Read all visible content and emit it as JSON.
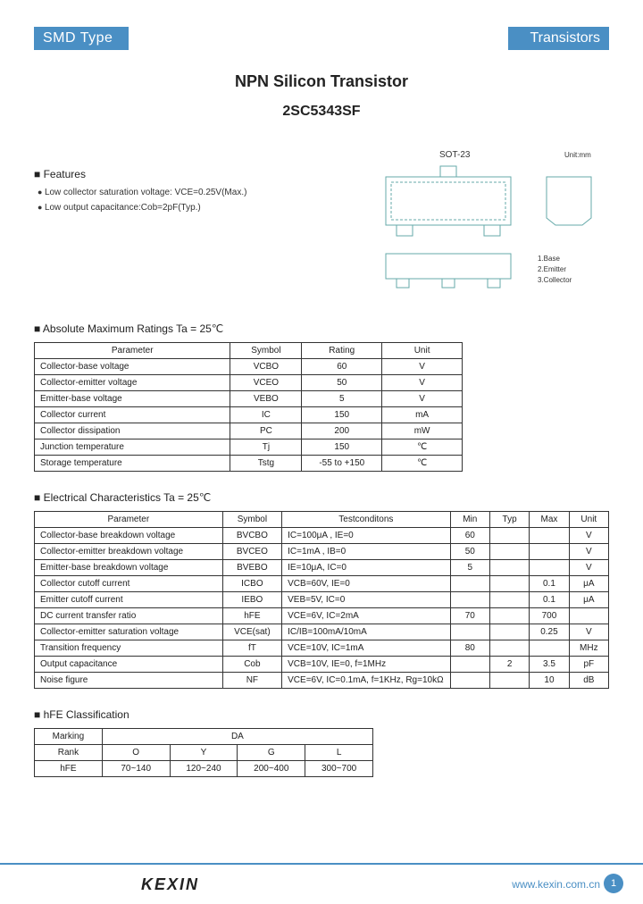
{
  "header": {
    "left": "SMD Type",
    "right": "Transistors"
  },
  "title": {
    "main": "NPN Silicon Transistor",
    "part": "2SC5343SF"
  },
  "features": {
    "heading": "Features",
    "items": [
      "Low collector saturation voltage: VCE=0.25V(Max.)",
      "Low output capacitance:Cob=2pF(Typ.)"
    ]
  },
  "package": {
    "label": "SOT-23",
    "unit": "Unit:mm",
    "pins": [
      "1.Base",
      "2.Emitter",
      "3.Collector"
    ]
  },
  "abs": {
    "heading": "Absolute Maximum Ratings Ta = 25℃",
    "cols": [
      "Parameter",
      "Symbol",
      "Rating",
      "Unit"
    ],
    "rows": [
      [
        "Collector-base voltage",
        "VCBO",
        "60",
        "V"
      ],
      [
        "Collector-emitter voltage",
        "VCEO",
        "50",
        "V"
      ],
      [
        "Emitter-base voltage",
        "VEBO",
        "5",
        "V"
      ],
      [
        "Collector current",
        "IC",
        "150",
        "mA"
      ],
      [
        "Collector dissipation",
        "PC",
        "200",
        "mW"
      ],
      [
        "Junction temperature",
        "Tj",
        "150",
        "℃"
      ],
      [
        "Storage temperature",
        "Tstg",
        "-55 to +150",
        "℃"
      ]
    ]
  },
  "elec": {
    "heading": "Electrical Characteristics Ta = 25℃",
    "cols": [
      "Parameter",
      "Symbol",
      "Testconditons",
      "Min",
      "Typ",
      "Max",
      "Unit"
    ],
    "rows": [
      [
        "Collector-base breakdown voltage",
        "BVCBO",
        "IC=100μA , IE=0",
        "60",
        "",
        "",
        "V"
      ],
      [
        "Collector-emitter breakdown voltage",
        "BVCEO",
        "IC=1mA , IB=0",
        "50",
        "",
        "",
        "V"
      ],
      [
        "Emitter-base breakdown voltage",
        "BVEBO",
        "IE=10μA, IC=0",
        "5",
        "",
        "",
        "V"
      ],
      [
        "Collector cutoff current",
        "ICBO",
        "VCB=60V, IE=0",
        "",
        "",
        "0.1",
        "μA"
      ],
      [
        "Emitter cutoff current",
        "IEBO",
        "VEB=5V, IC=0",
        "",
        "",
        "0.1",
        "μA"
      ],
      [
        "DC current transfer ratio",
        "hFE",
        "VCE=6V, IC=2mA",
        "70",
        "",
        "700",
        ""
      ],
      [
        "Collector-emitter saturation voltage",
        "VCE(sat)",
        "IC/IB=100mA/10mA",
        "",
        "",
        "0.25",
        "V"
      ],
      [
        "Transition frequency",
        "fT",
        "VCE=10V, IC=1mA",
        "80",
        "",
        "",
        "MHz"
      ],
      [
        "Output capacitance",
        "Cob",
        "VCB=10V, IE=0, f=1MHz",
        "",
        "2",
        "3.5",
        "pF"
      ],
      [
        "Noise figure",
        "NF",
        "VCE=6V, IC=0.1mA, f=1KHz, Rg=10kΩ",
        "",
        "",
        "10",
        "dB"
      ]
    ]
  },
  "hfe": {
    "heading": "hFE Classification",
    "marking_label": "Marking",
    "marking_value": "DA",
    "rank_label": "Rank",
    "ranks": [
      "O",
      "Y",
      "G",
      "L"
    ],
    "hfe_label": "hFE",
    "hfe_vals": [
      "70~140",
      "120~240",
      "200~400",
      "300~700"
    ]
  },
  "footer": {
    "logo": "KEXIN",
    "url": "www.kexin.com.cn",
    "page": "1"
  },
  "colors": {
    "brand": "#4a8fc4",
    "text": "#222222",
    "border": "#333333"
  }
}
